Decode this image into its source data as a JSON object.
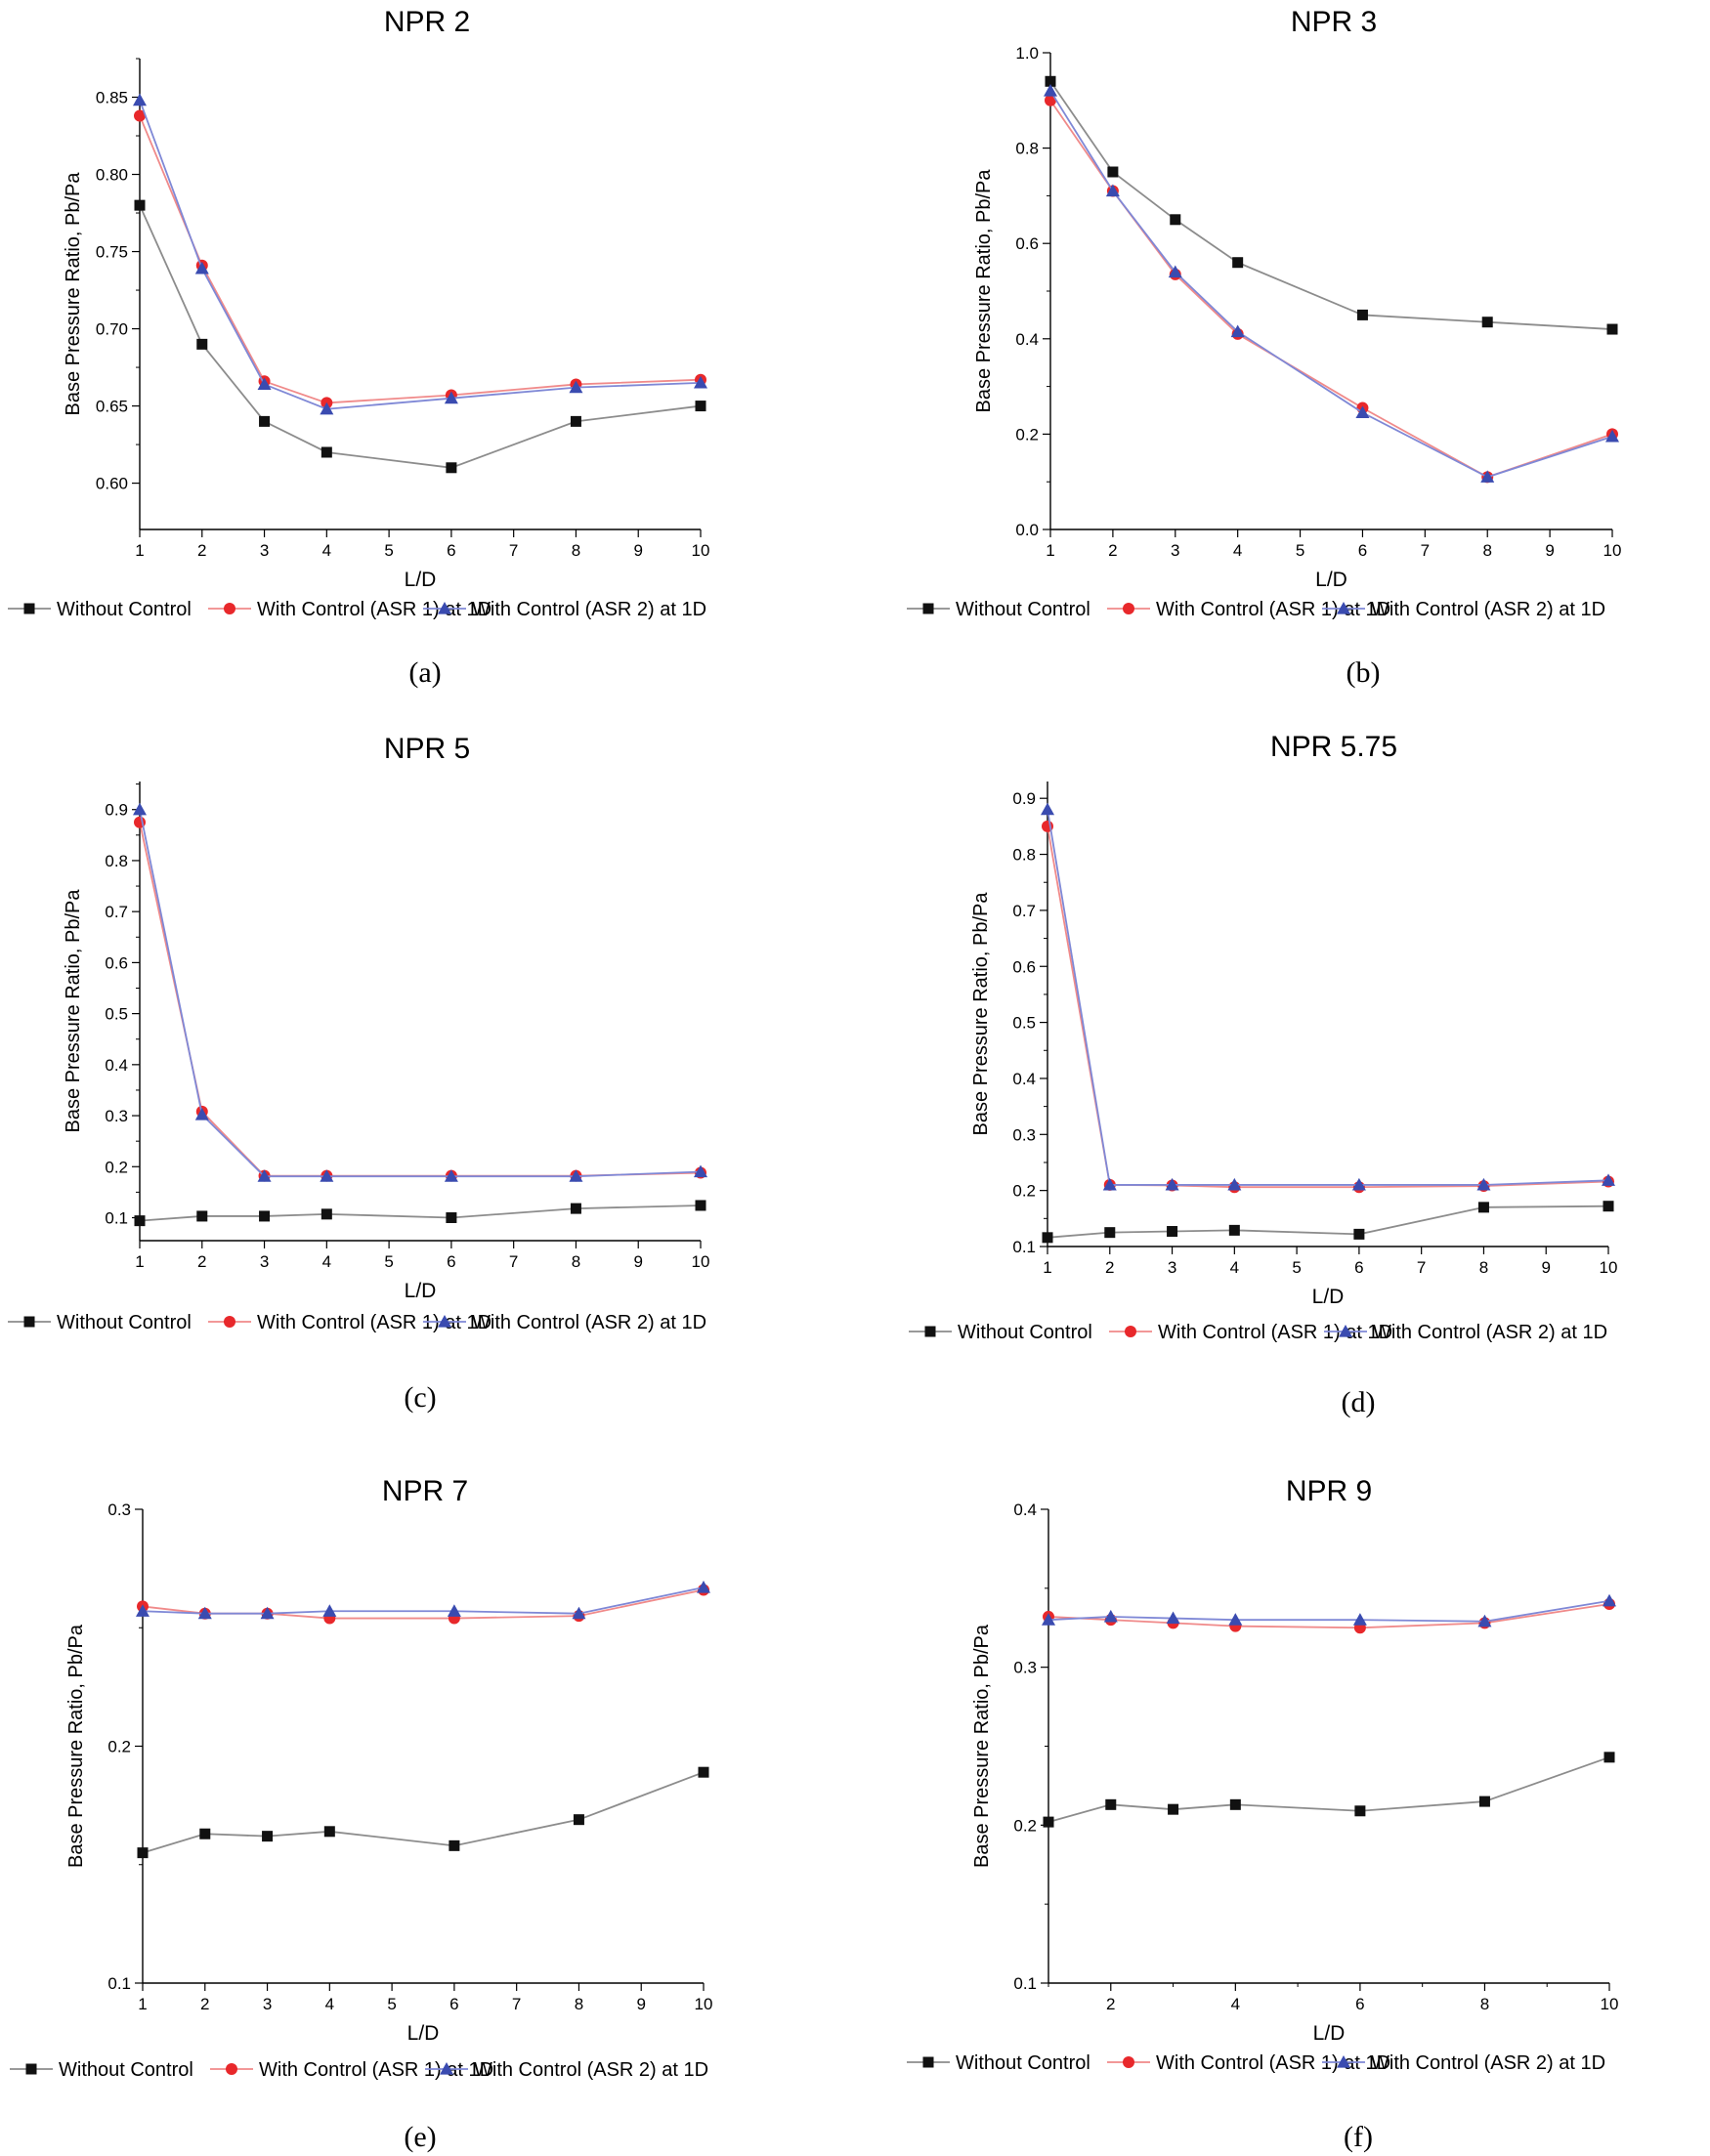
{
  "chart_data": [
    {
      "type": "line",
      "title": "NPR 2",
      "caption": "(a)",
      "xlabel": "L/D",
      "ylabel": "Base Pressure Ratio, Pb/Pa",
      "xlim": [
        1,
        10
      ],
      "ylim": [
        0.57,
        0.875
      ],
      "xticks": [
        "1",
        "2",
        "3",
        "4",
        "5",
        "6",
        "7",
        "8",
        "9",
        "10"
      ],
      "yticks": [
        "0.60",
        "0.65",
        "0.70",
        "0.75",
        "0.80",
        "0.85"
      ],
      "x": [
        1,
        2,
        3,
        4,
        6,
        8,
        10
      ],
      "series": [
        {
          "name": "Without Control",
          "color": "#111111",
          "line_color": "#8c8c8c",
          "marker": "square",
          "values": [
            0.78,
            0.69,
            0.64,
            0.62,
            0.61,
            0.64,
            0.65
          ]
        },
        {
          "name": "With Control (ASR 1) at 1D",
          "color": "#e8282b",
          "line_color": "#f08a8a",
          "marker": "circle",
          "values": [
            0.838,
            0.741,
            0.666,
            0.652,
            0.657,
            0.664,
            0.667
          ]
        },
        {
          "name": "With Control (ASR 2) at 1D",
          "color": "#3a4bb0",
          "line_color": "#7f88d6",
          "marker": "triangle",
          "values": [
            0.848,
            0.739,
            0.664,
            0.648,
            0.655,
            0.662,
            0.665
          ]
        }
      ]
    },
    {
      "type": "line",
      "title": "NPR 3",
      "caption": "(b)",
      "xlabel": "L/D",
      "ylabel": "Base Pressure Ratio, Pb/Pa",
      "xlim": [
        1,
        10
      ],
      "ylim": [
        0.0,
        1.0
      ],
      "xticks": [
        "1",
        "2",
        "3",
        "4",
        "5",
        "6",
        "7",
        "8",
        "9",
        "10"
      ],
      "yticks": [
        "0.0",
        "0.2",
        "0.4",
        "0.6",
        "0.8",
        "1.0"
      ],
      "x": [
        1,
        2,
        3,
        4,
        6,
        8,
        10
      ],
      "series": [
        {
          "name": "Without Control",
          "color": "#111111",
          "line_color": "#8c8c8c",
          "marker": "square",
          "values": [
            0.94,
            0.75,
            0.65,
            0.56,
            0.45,
            0.435,
            0.42
          ]
        },
        {
          "name": "With Control (ASR 1) at 1D",
          "color": "#e8282b",
          "line_color": "#f08a8a",
          "marker": "circle",
          "values": [
            0.9,
            0.71,
            0.535,
            0.41,
            0.255,
            0.11,
            0.2
          ]
        },
        {
          "name": "With Control (ASR 2) at 1D",
          "color": "#3a4bb0",
          "line_color": "#7f88d6",
          "marker": "triangle",
          "values": [
            0.92,
            0.71,
            0.54,
            0.415,
            0.245,
            0.11,
            0.195
          ]
        }
      ]
    },
    {
      "type": "line",
      "title": "NPR 5",
      "caption": "(c)",
      "xlabel": "L/D",
      "ylabel": "Base Pressure Ratio, Pb/Pa",
      "xlim": [
        1,
        10
      ],
      "ylim": [
        0.055,
        0.955
      ],
      "xticks": [
        "1",
        "2",
        "3",
        "4",
        "5",
        "6",
        "7",
        "8",
        "9",
        "10"
      ],
      "yticks": [
        "0.1",
        "0.2",
        "0.3",
        "0.4",
        "0.5",
        "0.6",
        "0.7",
        "0.8",
        "0.9"
      ],
      "x": [
        1,
        2,
        3,
        4,
        6,
        8,
        10
      ],
      "series": [
        {
          "name": "Without Control",
          "color": "#111111",
          "line_color": "#8c8c8c",
          "marker": "square",
          "values": [
            0.094,
            0.103,
            0.103,
            0.107,
            0.1,
            0.118,
            0.124
          ]
        },
        {
          "name": "With Control (ASR 1) at 1D",
          "color": "#e8282b",
          "line_color": "#f08a8a",
          "marker": "circle",
          "values": [
            0.875,
            0.308,
            0.182,
            0.182,
            0.182,
            0.182,
            0.188
          ]
        },
        {
          "name": "With Control (ASR 2) at 1D",
          "color": "#3a4bb0",
          "line_color": "#7f88d6",
          "marker": "triangle",
          "values": [
            0.9,
            0.302,
            0.181,
            0.181,
            0.181,
            0.181,
            0.19
          ]
        }
      ]
    },
    {
      "type": "line",
      "title": "NPR 5.75",
      "caption": "(d)",
      "xlabel": "L/D",
      "ylabel": "Base Pressure Ratio, Pb/Pa",
      "xlim": [
        1,
        10
      ],
      "ylim": [
        0.1,
        0.93
      ],
      "xticks": [
        "1",
        "2",
        "3",
        "4",
        "5",
        "6",
        "7",
        "8",
        "9",
        "10"
      ],
      "yticks": [
        "0.1",
        "0.2",
        "0.3",
        "0.4",
        "0.5",
        "0.6",
        "0.7",
        "0.8",
        "0.9"
      ],
      "x": [
        1,
        2,
        3,
        4,
        6,
        8,
        10
      ],
      "series": [
        {
          "name": "Without Control",
          "color": "#111111",
          "line_color": "#8c8c8c",
          "marker": "square",
          "values": [
            0.116,
            0.125,
            0.127,
            0.129,
            0.122,
            0.17,
            0.172
          ]
        },
        {
          "name": "With Control (ASR 1) at 1D",
          "color": "#e8282b",
          "line_color": "#f08a8a",
          "marker": "circle",
          "values": [
            0.85,
            0.21,
            0.209,
            0.206,
            0.206,
            0.208,
            0.216
          ]
        },
        {
          "name": "With Control (ASR 2) at 1D",
          "color": "#3a4bb0",
          "line_color": "#7f88d6",
          "marker": "triangle",
          "values": [
            0.88,
            0.21,
            0.21,
            0.21,
            0.21,
            0.21,
            0.218
          ]
        }
      ]
    },
    {
      "type": "line",
      "title": "NPR 7",
      "caption": "(e)",
      "xlabel": "L/D",
      "ylabel": "Base Pressure Ratio, Pb/Pa",
      "xlim": [
        1,
        10
      ],
      "ylim": [
        0.1,
        0.3
      ],
      "xticks": [
        "1",
        "2",
        "3",
        "4",
        "5",
        "6",
        "7",
        "8",
        "9",
        "10"
      ],
      "yticks": [
        "0.1",
        "0.2",
        "0.3"
      ],
      "x": [
        1,
        2,
        3,
        4,
        6,
        8,
        10
      ],
      "series": [
        {
          "name": "Without Control",
          "color": "#111111",
          "line_color": "#8c8c8c",
          "marker": "square",
          "values": [
            0.155,
            0.163,
            0.162,
            0.164,
            0.158,
            0.169,
            0.189
          ]
        },
        {
          "name": "With Control (ASR 1) at 1D",
          "color": "#e8282b",
          "line_color": "#f08a8a",
          "marker": "circle",
          "values": [
            0.259,
            0.256,
            0.256,
            0.254,
            0.254,
            0.255,
            0.266
          ]
        },
        {
          "name": "With Control (ASR 2) at 1D",
          "color": "#3a4bb0",
          "line_color": "#7f88d6",
          "marker": "triangle",
          "values": [
            0.257,
            0.256,
            0.256,
            0.257,
            0.257,
            0.256,
            0.267
          ]
        }
      ]
    },
    {
      "type": "line",
      "title": "NPR 9",
      "caption": "(f)",
      "xlabel": "L/D",
      "ylabel": "Base Pressure Ratio, Pb/Pa",
      "xlim": [
        1,
        10
      ],
      "ylim": [
        0.1,
        0.4
      ],
      "xticks": [
        "2",
        "4",
        "6",
        "8",
        "10"
      ],
      "yticks": [
        "0.1",
        "0.2",
        "0.3",
        "0.4"
      ],
      "x": [
        1,
        2,
        3,
        4,
        6,
        8,
        10
      ],
      "series": [
        {
          "name": "Without Control",
          "color": "#111111",
          "line_color": "#8c8c8c",
          "marker": "square",
          "values": [
            0.202,
            0.213,
            0.21,
            0.213,
            0.209,
            0.215,
            0.243
          ]
        },
        {
          "name": "With Control (ASR 1) at 1D",
          "color": "#e8282b",
          "line_color": "#f08a8a",
          "marker": "circle",
          "values": [
            0.332,
            0.33,
            0.328,
            0.326,
            0.325,
            0.328,
            0.34
          ]
        },
        {
          "name": "With Control (ASR 2) at 1D",
          "color": "#3a4bb0",
          "line_color": "#7f88d6",
          "marker": "triangle",
          "values": [
            0.33,
            0.332,
            0.331,
            0.33,
            0.33,
            0.329,
            0.342
          ]
        }
      ]
    }
  ]
}
